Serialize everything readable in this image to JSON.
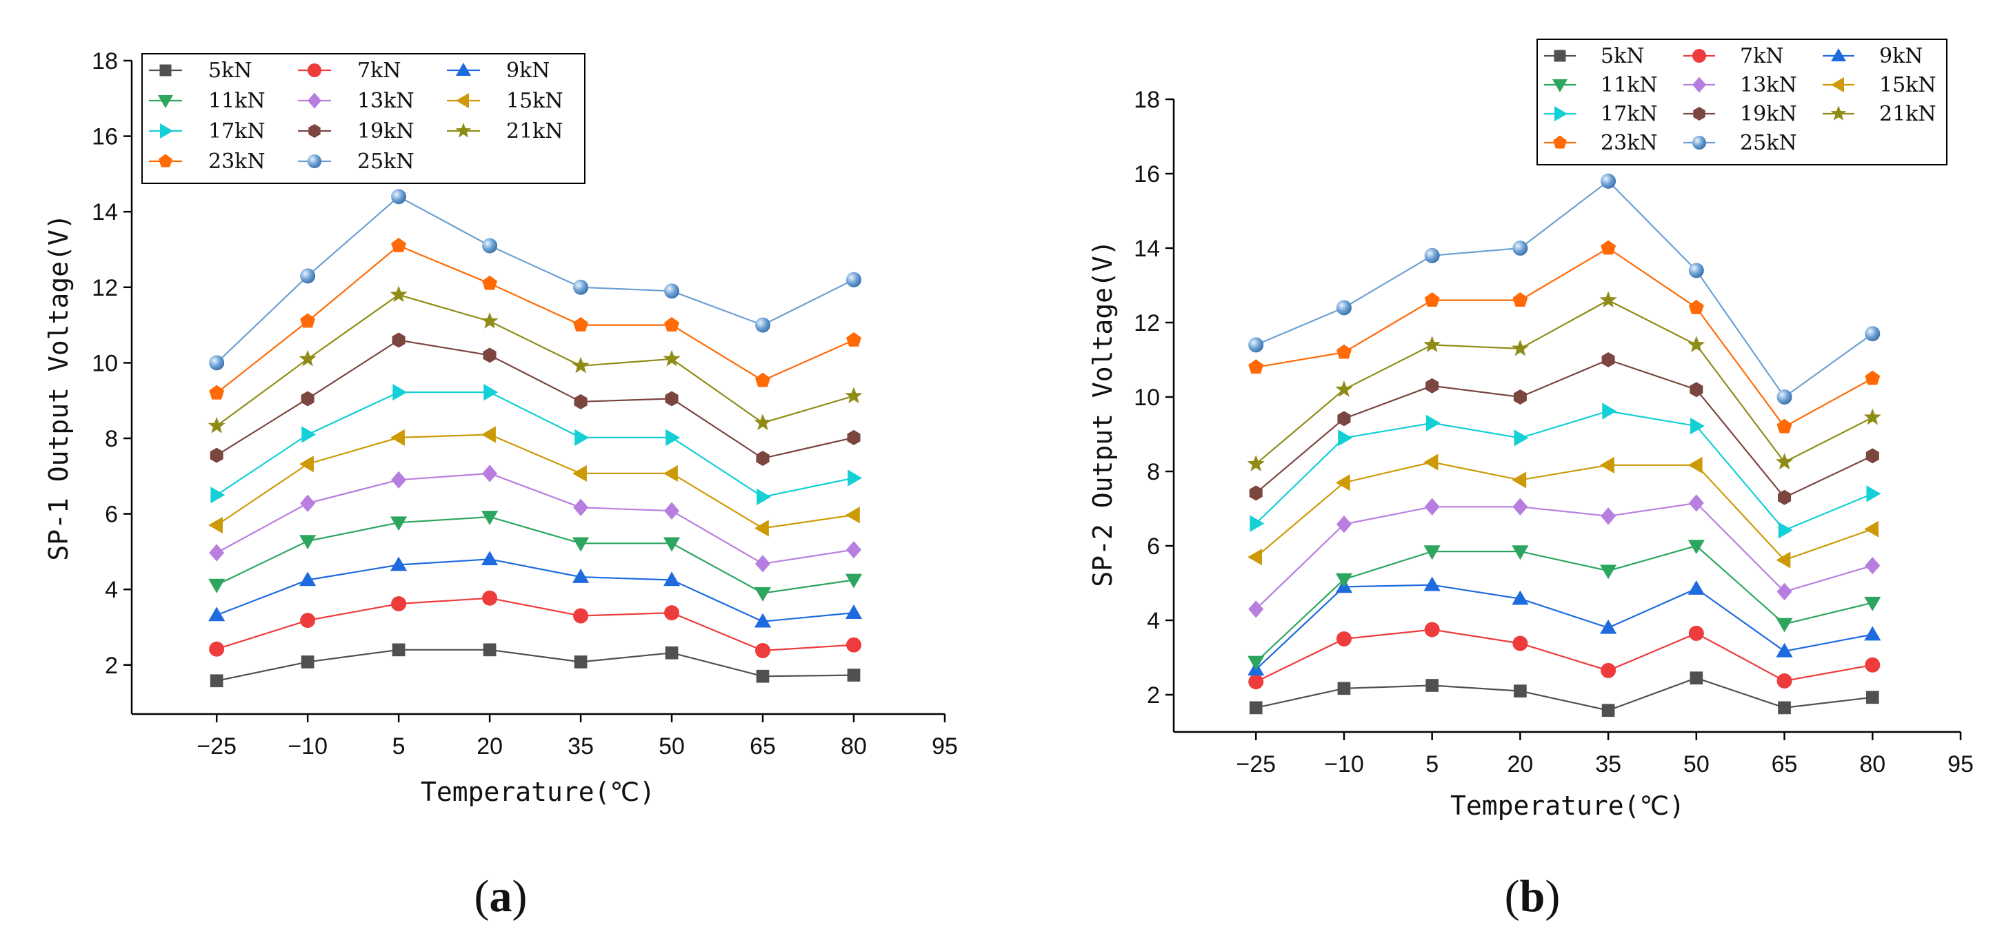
{
  "chart_data": [
    {
      "type": "line",
      "panel_label": "a",
      "xlabel": "Temperature(℃)",
      "ylabel": "SP-1 Output Voltage(V)",
      "x": [
        -25,
        -10,
        5,
        20,
        35,
        50,
        65,
        80
      ],
      "xticks": [
        -25,
        -10,
        5,
        20,
        35,
        50,
        65,
        80,
        95
      ],
      "yticks": [
        2,
        4,
        6,
        8,
        10,
        12,
        14,
        16,
        18
      ],
      "xlim": [
        -39,
        95
      ],
      "ylim": [
        0.7,
        18
      ],
      "legend_position": "top-left",
      "series": [
        {
          "name": "5kN",
          "values": [
            1.58,
            2.08,
            2.4,
            2.4,
            2.08,
            2.32,
            1.7,
            1.73
          ]
        },
        {
          "name": "7kN",
          "values": [
            2.42,
            3.18,
            3.62,
            3.77,
            3.3,
            3.38,
            2.38,
            2.53
          ]
        },
        {
          "name": "9kN",
          "values": [
            3.32,
            4.25,
            4.65,
            4.8,
            4.33,
            4.25,
            3.15,
            3.38
          ]
        },
        {
          "name": "11kN",
          "values": [
            4.12,
            5.28,
            5.77,
            5.92,
            5.22,
            5.22,
            3.9,
            4.25
          ]
        },
        {
          "name": "13kN",
          "values": [
            4.97,
            6.28,
            6.9,
            7.07,
            6.17,
            6.08,
            4.68,
            5.05
          ]
        },
        {
          "name": "15kN",
          "values": [
            5.7,
            7.32,
            8.02,
            8.1,
            7.07,
            7.07,
            5.62,
            5.97
          ]
        },
        {
          "name": "17kN",
          "values": [
            6.5,
            8.1,
            9.22,
            9.22,
            8.02,
            8.02,
            6.45,
            6.95
          ]
        },
        {
          "name": "19kN",
          "values": [
            7.55,
            9.05,
            10.6,
            10.2,
            8.97,
            9.05,
            7.47,
            8.02
          ]
        },
        {
          "name": "21kN",
          "values": [
            8.33,
            10.1,
            11.8,
            11.1,
            9.92,
            10.1,
            8.41,
            9.12
          ]
        },
        {
          "name": "23kN",
          "values": [
            9.2,
            11.1,
            13.1,
            12.1,
            11.0,
            11.0,
            9.53,
            10.6
          ]
        },
        {
          "name": "25kN",
          "values": [
            10.0,
            12.3,
            14.4,
            13.1,
            12.0,
            11.9,
            11.0,
            12.2
          ]
        }
      ]
    },
    {
      "type": "line",
      "panel_label": "b",
      "xlabel": "Temperature(℃)",
      "ylabel": "SP-2 Output Voltage(V)",
      "x": [
        -25,
        -10,
        5,
        20,
        35,
        50,
        65,
        80
      ],
      "xticks": [
        -25,
        -10,
        5,
        20,
        35,
        50,
        65,
        80,
        95
      ],
      "yticks": [
        2,
        4,
        6,
        8,
        10,
        12,
        14,
        16,
        18
      ],
      "xlim": [
        -39,
        95
      ],
      "ylim": [
        1,
        18
      ],
      "legend_position": "top-right",
      "series": [
        {
          "name": "5kN",
          "values": [
            1.65,
            2.17,
            2.25,
            2.1,
            1.58,
            2.45,
            1.65,
            1.93
          ]
        },
        {
          "name": "7kN",
          "values": [
            2.35,
            3.5,
            3.75,
            3.38,
            2.65,
            3.65,
            2.37,
            2.8
          ]
        },
        {
          "name": "9kN",
          "values": [
            2.68,
            4.9,
            4.95,
            4.58,
            3.8,
            4.85,
            3.17,
            3.62
          ]
        },
        {
          "name": "11kN",
          "values": [
            2.88,
            5.1,
            5.85,
            5.85,
            5.33,
            6.0,
            3.9,
            4.47
          ]
        },
        {
          "name": "13kN",
          "values": [
            4.3,
            6.58,
            7.05,
            7.05,
            6.8,
            7.15,
            4.77,
            5.47
          ]
        },
        {
          "name": "15kN",
          "values": [
            5.7,
            7.7,
            8.25,
            7.77,
            8.17,
            8.17,
            5.62,
            6.45
          ]
        },
        {
          "name": "17kN",
          "values": [
            6.6,
            8.9,
            9.3,
            8.9,
            9.62,
            9.22,
            6.42,
            7.4
          ]
        },
        {
          "name": "19kN",
          "values": [
            7.42,
            9.42,
            10.3,
            10.0,
            11.0,
            10.2,
            7.3,
            8.42
          ]
        },
        {
          "name": "21kN",
          "values": [
            8.2,
            10.2,
            11.4,
            11.3,
            12.6,
            11.4,
            8.25,
            9.45
          ]
        },
        {
          "name": "23kN",
          "values": [
            10.8,
            11.2,
            12.6,
            12.6,
            14.0,
            12.4,
            9.2,
            10.5
          ]
        },
        {
          "name": "25kN",
          "values": [
            11.4,
            12.4,
            13.8,
            14.0,
            15.8,
            13.4,
            10.0,
            11.7
          ]
        }
      ]
    }
  ],
  "series_styles": [
    {
      "color": "#505050",
      "marker": "square"
    },
    {
      "color": "#ee3b3b",
      "marker": "circle"
    },
    {
      "color": "#1e6be0",
      "marker": "triangle-up"
    },
    {
      "color": "#2ca65e",
      "marker": "triangle-down"
    },
    {
      "color": "#b77ee0",
      "marker": "diamond"
    },
    {
      "color": "#cc9a06",
      "marker": "triangle-left"
    },
    {
      "color": "#13cfd6",
      "marker": "triangle-right"
    },
    {
      "color": "#7b4540",
      "marker": "hexagon"
    },
    {
      "color": "#8f8c16",
      "marker": "star"
    },
    {
      "color": "#ff6a06",
      "marker": "pentagon"
    },
    {
      "color": "#6ba0d4",
      "marker": "sphere"
    }
  ]
}
